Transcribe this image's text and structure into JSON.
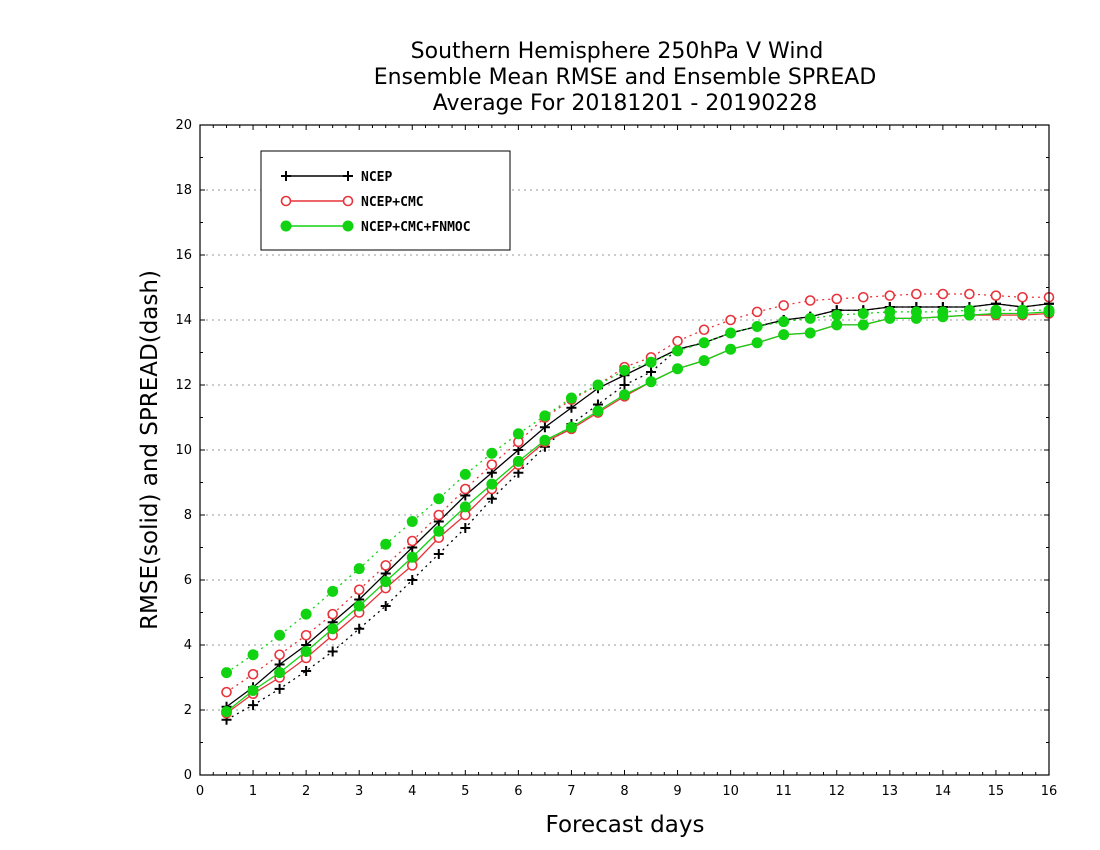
{
  "chart_data": {
    "type": "line",
    "title": [
      "Southern Hemisphere 250hPa V Wind",
      "Ensemble Mean RMSE and Ensemble SPREAD",
      "Average For 20181201 - 20190228"
    ],
    "xlabel": "Forecast days",
    "ylabel": "RMSE(solid) and SPREAD(dash)",
    "xlim": [
      0,
      16
    ],
    "ylim": [
      0,
      20
    ],
    "xticks": [
      0,
      1,
      2,
      3,
      4,
      5,
      6,
      7,
      8,
      9,
      10,
      11,
      12,
      13,
      14,
      15,
      16
    ],
    "yticks": [
      0,
      2,
      4,
      6,
      8,
      10,
      12,
      14,
      16,
      18,
      20
    ],
    "grid": "horizontal dotted",
    "legend_position": "top-left",
    "x": [
      0.5,
      1,
      1.5,
      2,
      2.5,
      3,
      3.5,
      4,
      4.5,
      5,
      5.5,
      6,
      6.5,
      7,
      7.5,
      8,
      8.5,
      9,
      9.5,
      10,
      10.5,
      11,
      11.5,
      12,
      12.5,
      13,
      13.5,
      14,
      14.5,
      15,
      15.5,
      16
    ],
    "series": [
      {
        "name": "NCEP",
        "color": "#000000",
        "marker": "plus",
        "rmse": [
          2.1,
          2.7,
          3.4,
          4.0,
          4.7,
          5.4,
          6.2,
          7.0,
          7.8,
          8.6,
          9.3,
          10.0,
          10.7,
          11.3,
          11.9,
          12.3,
          12.7,
          13.1,
          13.3,
          13.6,
          13.8,
          14.0,
          14.1,
          14.3,
          14.3,
          14.4,
          14.4,
          14.4,
          14.4,
          14.5,
          14.4,
          14.5
        ],
        "spread": [
          1.7,
          2.15,
          2.65,
          3.2,
          3.8,
          4.5,
          5.2,
          6.0,
          6.8,
          7.6,
          8.5,
          9.3,
          10.1,
          10.8,
          11.4,
          12.0,
          12.4,
          13.1,
          13.3,
          13.6,
          13.8,
          14.0,
          14.1,
          14.3,
          14.3,
          14.4,
          14.4,
          14.4,
          14.4,
          14.5,
          14.4,
          14.5
        ]
      },
      {
        "name": "NCEP+CMC",
        "color": "#e8333a",
        "marker": "open-circle",
        "rmse": [
          1.9,
          2.5,
          3.0,
          3.6,
          4.3,
          5.0,
          5.75,
          6.45,
          7.3,
          8.0,
          8.8,
          9.55,
          10.25,
          10.65,
          11.15,
          11.65,
          12.1,
          12.5,
          12.75,
          13.1,
          13.3,
          13.55,
          13.6,
          13.85,
          13.85,
          14.05,
          14.05,
          14.1,
          14.15,
          14.15,
          14.15,
          14.2
        ],
        "spread": [
          2.55,
          3.1,
          3.7,
          4.3,
          4.95,
          5.7,
          6.45,
          7.2,
          8.0,
          8.8,
          9.55,
          10.25,
          11.0,
          11.55,
          12.0,
          12.55,
          12.85,
          13.35,
          13.7,
          14.0,
          14.25,
          14.45,
          14.6,
          14.65,
          14.7,
          14.75,
          14.8,
          14.8,
          14.8,
          14.75,
          14.7,
          14.7
        ]
      },
      {
        "name": "NCEP+CMC+FNMOC",
        "color": "#11d311",
        "marker": "filled-circle",
        "rmse": [
          1.95,
          2.6,
          3.15,
          3.8,
          4.5,
          5.2,
          5.95,
          6.7,
          7.5,
          8.25,
          8.95,
          9.65,
          10.3,
          10.7,
          11.2,
          11.7,
          12.1,
          12.5,
          12.75,
          13.1,
          13.3,
          13.55,
          13.6,
          13.85,
          13.85,
          14.05,
          14.05,
          14.1,
          14.15,
          14.2,
          14.2,
          14.25
        ],
        "spread": [
          3.15,
          3.7,
          4.3,
          4.95,
          5.65,
          6.35,
          7.1,
          7.8,
          8.5,
          9.25,
          9.9,
          10.5,
          11.05,
          11.6,
          12.0,
          12.45,
          12.7,
          13.05,
          13.3,
          13.6,
          13.8,
          13.95,
          14.05,
          14.15,
          14.2,
          14.25,
          14.25,
          14.25,
          14.3,
          14.3,
          14.3,
          14.3
        ]
      }
    ]
  }
}
